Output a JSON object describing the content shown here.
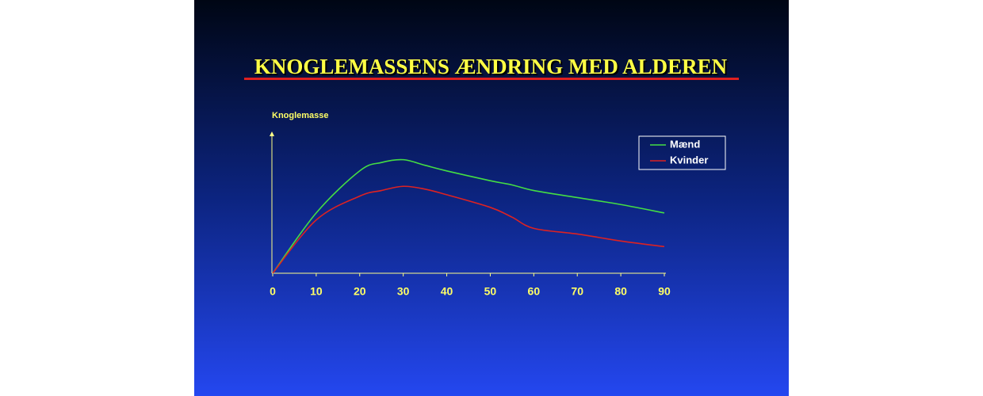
{
  "chart_data": {
    "type": "line",
    "title": "KNOGLEMASSENS ÆNDRING MED ALDEREN",
    "y_label": "Knoglemasse",
    "x": [
      0,
      10,
      20,
      25,
      30,
      35,
      40,
      50,
      55,
      60,
      70,
      80,
      90
    ],
    "series": [
      {
        "name": "Mænd",
        "color": "#44dd44",
        "values": [
          0,
          43,
          73,
          79,
          81,
          77,
          73,
          66,
          63,
          59,
          54,
          49,
          43
        ]
      },
      {
        "name": "Kvinder",
        "color": "#dd2222",
        "values": [
          0,
          38,
          55,
          59,
          62,
          60,
          56,
          47,
          40,
          32,
          28,
          23,
          19
        ]
      }
    ],
    "xlim": [
      0,
      90
    ],
    "xticks": [
      0,
      10,
      20,
      30,
      40,
      50,
      60,
      70,
      80,
      90
    ],
    "ylim": [
      0,
      100
    ],
    "legend": "upper right"
  }
}
